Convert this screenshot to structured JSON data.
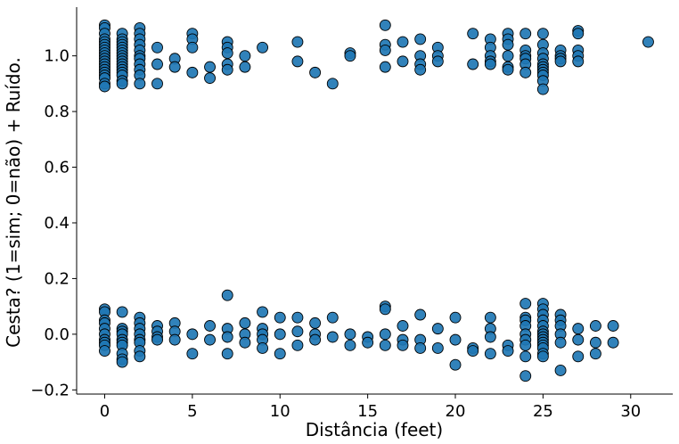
{
  "chart_data": {
    "type": "scatter",
    "title": "",
    "xlabel": "Distância (feet)",
    "ylabel": "Cesta? (1=sim; 0=não) + Ruído.",
    "xlim": [
      -1.6,
      32.4
    ],
    "ylim": [
      -0.215,
      1.175
    ],
    "xticks": [
      0,
      5,
      10,
      15,
      20,
      25,
      30
    ],
    "xtick_labels": [
      "0",
      "5",
      "10",
      "15",
      "20",
      "25",
      "30"
    ],
    "yticks": [
      -0.2,
      0.0,
      0.2,
      0.4,
      0.6,
      0.8,
      1.0
    ],
    "ytick_labels": [
      "−0.2",
      "0.0",
      "0.2",
      "0.4",
      "0.6",
      "0.8",
      "1.0"
    ],
    "grid": false,
    "marker_color": "#1f77b4",
    "marker_edge_color": "#000000",
    "series": [
      {
        "points": [
          [
            0,
            1.11
          ],
          [
            0,
            1.1
          ],
          [
            0,
            1.08
          ],
          [
            0,
            1.06
          ],
          [
            0,
            1.05
          ],
          [
            0,
            1.04
          ],
          [
            0,
            1.03
          ],
          [
            0,
            1.02
          ],
          [
            0,
            1.01
          ],
          [
            0,
            1.0
          ],
          [
            0,
            0.99
          ],
          [
            0,
            0.98
          ],
          [
            0,
            0.97
          ],
          [
            0,
            0.96
          ],
          [
            0,
            0.95
          ],
          [
            0,
            0.94
          ],
          [
            0,
            0.93
          ],
          [
            0,
            0.92
          ],
          [
            0,
            0.9
          ],
          [
            0,
            0.89
          ],
          [
            1,
            1.08
          ],
          [
            1,
            1.06
          ],
          [
            1,
            1.05
          ],
          [
            1,
            1.04
          ],
          [
            1,
            1.03
          ],
          [
            1,
            1.02
          ],
          [
            1,
            1.01
          ],
          [
            1,
            1.0
          ],
          [
            1,
            0.99
          ],
          [
            1,
            0.98
          ],
          [
            1,
            0.97
          ],
          [
            1,
            0.96
          ],
          [
            1,
            0.95
          ],
          [
            1,
            0.94
          ],
          [
            1,
            0.93
          ],
          [
            1,
            0.91
          ],
          [
            1,
            0.9
          ],
          [
            2,
            1.1
          ],
          [
            2,
            1.08
          ],
          [
            2,
            1.06
          ],
          [
            2,
            1.04
          ],
          [
            2,
            1.02
          ],
          [
            2,
            1.0
          ],
          [
            2,
            0.99
          ],
          [
            2,
            0.97
          ],
          [
            2,
            0.95
          ],
          [
            2,
            0.93
          ],
          [
            2,
            0.9
          ],
          [
            3,
            1.03
          ],
          [
            3,
            0.97
          ],
          [
            3,
            0.9
          ],
          [
            4,
            0.99
          ],
          [
            4,
            0.96
          ],
          [
            5,
            1.08
          ],
          [
            5,
            1.06
          ],
          [
            5,
            1.03
          ],
          [
            5,
            0.94
          ],
          [
            6,
            0.96
          ],
          [
            6,
            0.92
          ],
          [
            7,
            1.05
          ],
          [
            7,
            1.03
          ],
          [
            7,
            1.01
          ],
          [
            7,
            0.97
          ],
          [
            7,
            0.95
          ],
          [
            8,
            1.0
          ],
          [
            8,
            0.96
          ],
          [
            9,
            1.03
          ],
          [
            11,
            1.05
          ],
          [
            11,
            0.98
          ],
          [
            12,
            0.94
          ],
          [
            13,
            0.9
          ],
          [
            14,
            1.01
          ],
          [
            14,
            1.0
          ],
          [
            16,
            1.11
          ],
          [
            16,
            1.04
          ],
          [
            16,
            1.02
          ],
          [
            16,
            0.96
          ],
          [
            17,
            1.05
          ],
          [
            17,
            0.98
          ],
          [
            18,
            1.06
          ],
          [
            18,
            1.0
          ],
          [
            18,
            0.97
          ],
          [
            18,
            0.95
          ],
          [
            19,
            1.03
          ],
          [
            19,
            1.0
          ],
          [
            19,
            0.98
          ],
          [
            21,
            1.08
          ],
          [
            21,
            0.97
          ],
          [
            22,
            1.06
          ],
          [
            22,
            1.03
          ],
          [
            22,
            1.0
          ],
          [
            22,
            0.98
          ],
          [
            22,
            0.97
          ],
          [
            23,
            1.08
          ],
          [
            23,
            1.06
          ],
          [
            23,
            1.04
          ],
          [
            23,
            1.0
          ],
          [
            23,
            0.96
          ],
          [
            23,
            0.95
          ],
          [
            24,
            1.08
          ],
          [
            24,
            1.02
          ],
          [
            24,
            1.0
          ],
          [
            24,
            0.99
          ],
          [
            24,
            0.97
          ],
          [
            24,
            0.94
          ],
          [
            25,
            1.08
          ],
          [
            25,
            1.04
          ],
          [
            25,
            1.01
          ],
          [
            25,
            0.99
          ],
          [
            25,
            0.97
          ],
          [
            25,
            0.96
          ],
          [
            25,
            0.95
          ],
          [
            25,
            0.94
          ],
          [
            25,
            0.93
          ],
          [
            25,
            0.91
          ],
          [
            25,
            0.88
          ],
          [
            26,
            1.02
          ],
          [
            26,
            1.0
          ],
          [
            26,
            0.99
          ],
          [
            26,
            0.98
          ],
          [
            27,
            1.09
          ],
          [
            27,
            1.08
          ],
          [
            27,
            1.02
          ],
          [
            27,
            1.0
          ],
          [
            27,
            0.98
          ],
          [
            31,
            1.05
          ],
          [
            0,
            0.09
          ],
          [
            0,
            0.08
          ],
          [
            0,
            0.05
          ],
          [
            0,
            0.04
          ],
          [
            0,
            0.02
          ],
          [
            0,
            0.0
          ],
          [
            0,
            -0.02
          ],
          [
            0,
            -0.03
          ],
          [
            0,
            -0.04
          ],
          [
            0,
            -0.06
          ],
          [
            1,
            0.08
          ],
          [
            1,
            0.02
          ],
          [
            1,
            0.01
          ],
          [
            1,
            0.0
          ],
          [
            1,
            -0.02
          ],
          [
            1,
            -0.03
          ],
          [
            1,
            -0.04
          ],
          [
            1,
            -0.07
          ],
          [
            1,
            -0.09
          ],
          [
            1,
            -0.1
          ],
          [
            2,
            0.06
          ],
          [
            2,
            0.04
          ],
          [
            2,
            0.02
          ],
          [
            2,
            0.0
          ],
          [
            2,
            -0.02
          ],
          [
            2,
            -0.03
          ],
          [
            2,
            -0.06
          ],
          [
            2,
            -0.08
          ],
          [
            3,
            0.03
          ],
          [
            3,
            0.01
          ],
          [
            3,
            -0.01
          ],
          [
            3,
            -0.02
          ],
          [
            4,
            0.04
          ],
          [
            4,
            0.01
          ],
          [
            4,
            -0.02
          ],
          [
            5,
            0.0
          ],
          [
            5,
            -0.07
          ],
          [
            6,
            0.03
          ],
          [
            6,
            -0.02
          ],
          [
            7,
            0.14
          ],
          [
            7,
            0.02
          ],
          [
            7,
            -0.01
          ],
          [
            7,
            -0.07
          ],
          [
            8,
            0.04
          ],
          [
            8,
            0.0
          ],
          [
            8,
            -0.03
          ],
          [
            9,
            0.08
          ],
          [
            9,
            0.02
          ],
          [
            9,
            0.0
          ],
          [
            9,
            -0.02
          ],
          [
            9,
            -0.05
          ],
          [
            10,
            0.06
          ],
          [
            10,
            0.0
          ],
          [
            10,
            -0.07
          ],
          [
            11,
            0.06
          ],
          [
            11,
            0.01
          ],
          [
            11,
            -0.04
          ],
          [
            12,
            0.04
          ],
          [
            12,
            0.0
          ],
          [
            12,
            -0.02
          ],
          [
            13,
            0.06
          ],
          [
            13,
            -0.01
          ],
          [
            14,
            0.0
          ],
          [
            14,
            -0.04
          ],
          [
            15,
            -0.01
          ],
          [
            15,
            -0.03
          ],
          [
            16,
            0.1
          ],
          [
            16,
            0.09
          ],
          [
            16,
            0.0
          ],
          [
            16,
            -0.04
          ],
          [
            17,
            0.03
          ],
          [
            17,
            -0.02
          ],
          [
            17,
            -0.04
          ],
          [
            18,
            0.07
          ],
          [
            18,
            -0.02
          ],
          [
            18,
            -0.05
          ],
          [
            19,
            0.02
          ],
          [
            19,
            -0.05
          ],
          [
            20,
            0.06
          ],
          [
            20,
            -0.02
          ],
          [
            20,
            -0.11
          ],
          [
            21,
            -0.05
          ],
          [
            21,
            -0.06
          ],
          [
            22,
            0.06
          ],
          [
            22,
            0.02
          ],
          [
            22,
            -0.01
          ],
          [
            22,
            -0.07
          ],
          [
            23,
            -0.04
          ],
          [
            23,
            -0.06
          ],
          [
            24,
            0.11
          ],
          [
            24,
            0.06
          ],
          [
            24,
            0.05
          ],
          [
            24,
            0.03
          ],
          [
            24,
            0.0
          ],
          [
            24,
            -0.02
          ],
          [
            24,
            -0.04
          ],
          [
            24,
            -0.08
          ],
          [
            24,
            -0.15
          ],
          [
            25,
            0.11
          ],
          [
            25,
            0.09
          ],
          [
            25,
            0.07
          ],
          [
            25,
            0.05
          ],
          [
            25,
            0.03
          ],
          [
            25,
            0.01
          ],
          [
            25,
            0.0
          ],
          [
            25,
            -0.01
          ],
          [
            25,
            -0.02
          ],
          [
            25,
            -0.03
          ],
          [
            25,
            -0.04
          ],
          [
            25,
            -0.05
          ],
          [
            25,
            -0.07
          ],
          [
            25,
            -0.08
          ],
          [
            26,
            0.07
          ],
          [
            26,
            0.05
          ],
          [
            26,
            0.03
          ],
          [
            26,
            0.0
          ],
          [
            26,
            -0.03
          ],
          [
            26,
            -0.13
          ],
          [
            27,
            0.02
          ],
          [
            27,
            -0.02
          ],
          [
            27,
            -0.08
          ],
          [
            28,
            0.03
          ],
          [
            28,
            -0.03
          ],
          [
            28,
            -0.07
          ],
          [
            29,
            0.03
          ],
          [
            29,
            -0.03
          ]
        ]
      }
    ]
  }
}
